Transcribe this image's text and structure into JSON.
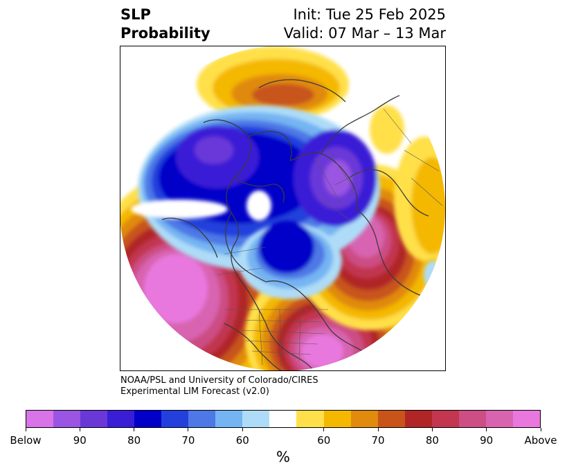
{
  "title": {
    "left_line1": "SLP",
    "left_line2": "Probability",
    "right_line1": "Init: Tue 25 Feb 2025",
    "right_line2": "Valid: 07 Mar – 13 Mar"
  },
  "credit": {
    "line1": "NOAA/PSL and University of Colorado/CIRES",
    "line2": "Experimental LIM Forecast (v2.0)"
  },
  "colorbar": {
    "colors": [
      "#d873e8",
      "#9a55e2",
      "#6b38d8",
      "#3a1ed6",
      "#0000c8",
      "#2440dc",
      "#4d78e6",
      "#74b4f2",
      "#aedcf8",
      "#ffffff",
      "#ffe04a",
      "#f4b800",
      "#e08a0e",
      "#c8541a",
      "#b02626",
      "#c23650",
      "#cc4e84",
      "#d864b0",
      "#e878de"
    ],
    "labels": [
      "Below",
      "90",
      "80",
      "70",
      "60",
      "60",
      "70",
      "80",
      "90",
      "Above"
    ],
    "units": "%"
  }
}
